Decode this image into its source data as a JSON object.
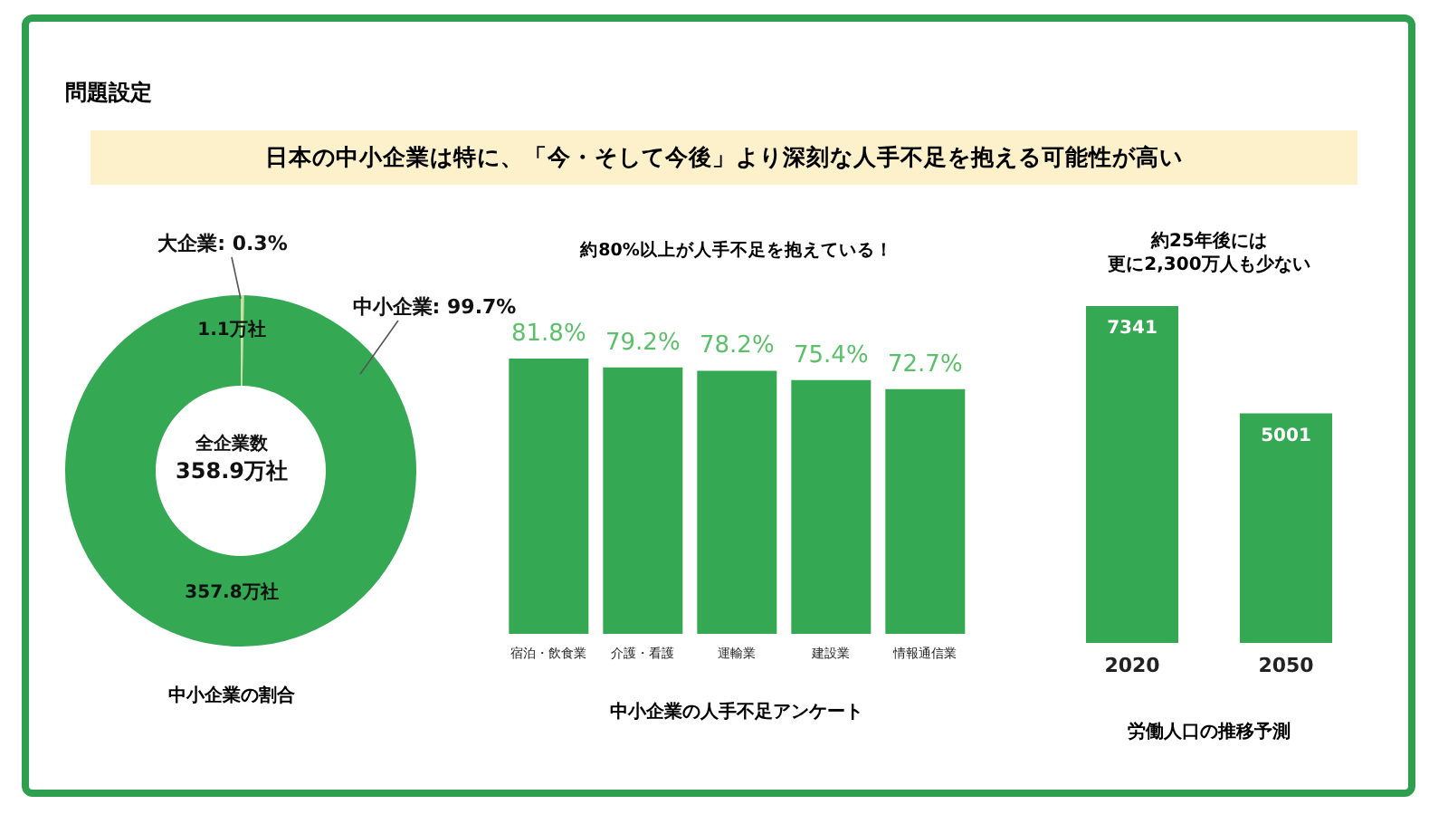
{
  "chart_data": [
    {
      "type": "donut",
      "title": "中小企業の割合",
      "annotations": [
        "問題設定",
        "日本の中小企業は特に、「今・そして今後」より深刻な人手不足を抱える可能性が高い",
        "1.1万社",
        "357.8万社",
        "全企業数\n358.9万社"
      ],
      "categories": [
        "大企業",
        "中小企業"
      ],
      "values": [
        0.3,
        99.7
      ],
      "colors": [
        "#c5e3a0",
        "#34a853"
      ],
      "value_labels": [
        "0.3%",
        "99.7%"
      ]
    },
    {
      "type": "bar",
      "title": "約80%以上が人手不足を抱えている！",
      "xlabel": "中小企業の人手不足アンケート",
      "categories": [
        "宿泊・飲食業",
        "介護・看護",
        "運輸業",
        "建設業",
        "情報通信業"
      ],
      "values": [
        81.8,
        79.2,
        78.2,
        75.4,
        72.7
      ],
      "color": "#34a853",
      "value_labels": [
        "81.8%",
        "79.2%",
        "78.2%",
        "75.4%",
        "72.7%"
      ]
    },
    {
      "type": "bar",
      "title": "約25年後には",
      "subtitle": "更に2,300万人も少ない",
      "xlabel": "労働人口の推移予測",
      "categories": [
        "2020",
        "2050"
      ],
      "values": [
        7341,
        5001
      ],
      "color": "#34a853",
      "data_labels": true
    }
  ]
}
